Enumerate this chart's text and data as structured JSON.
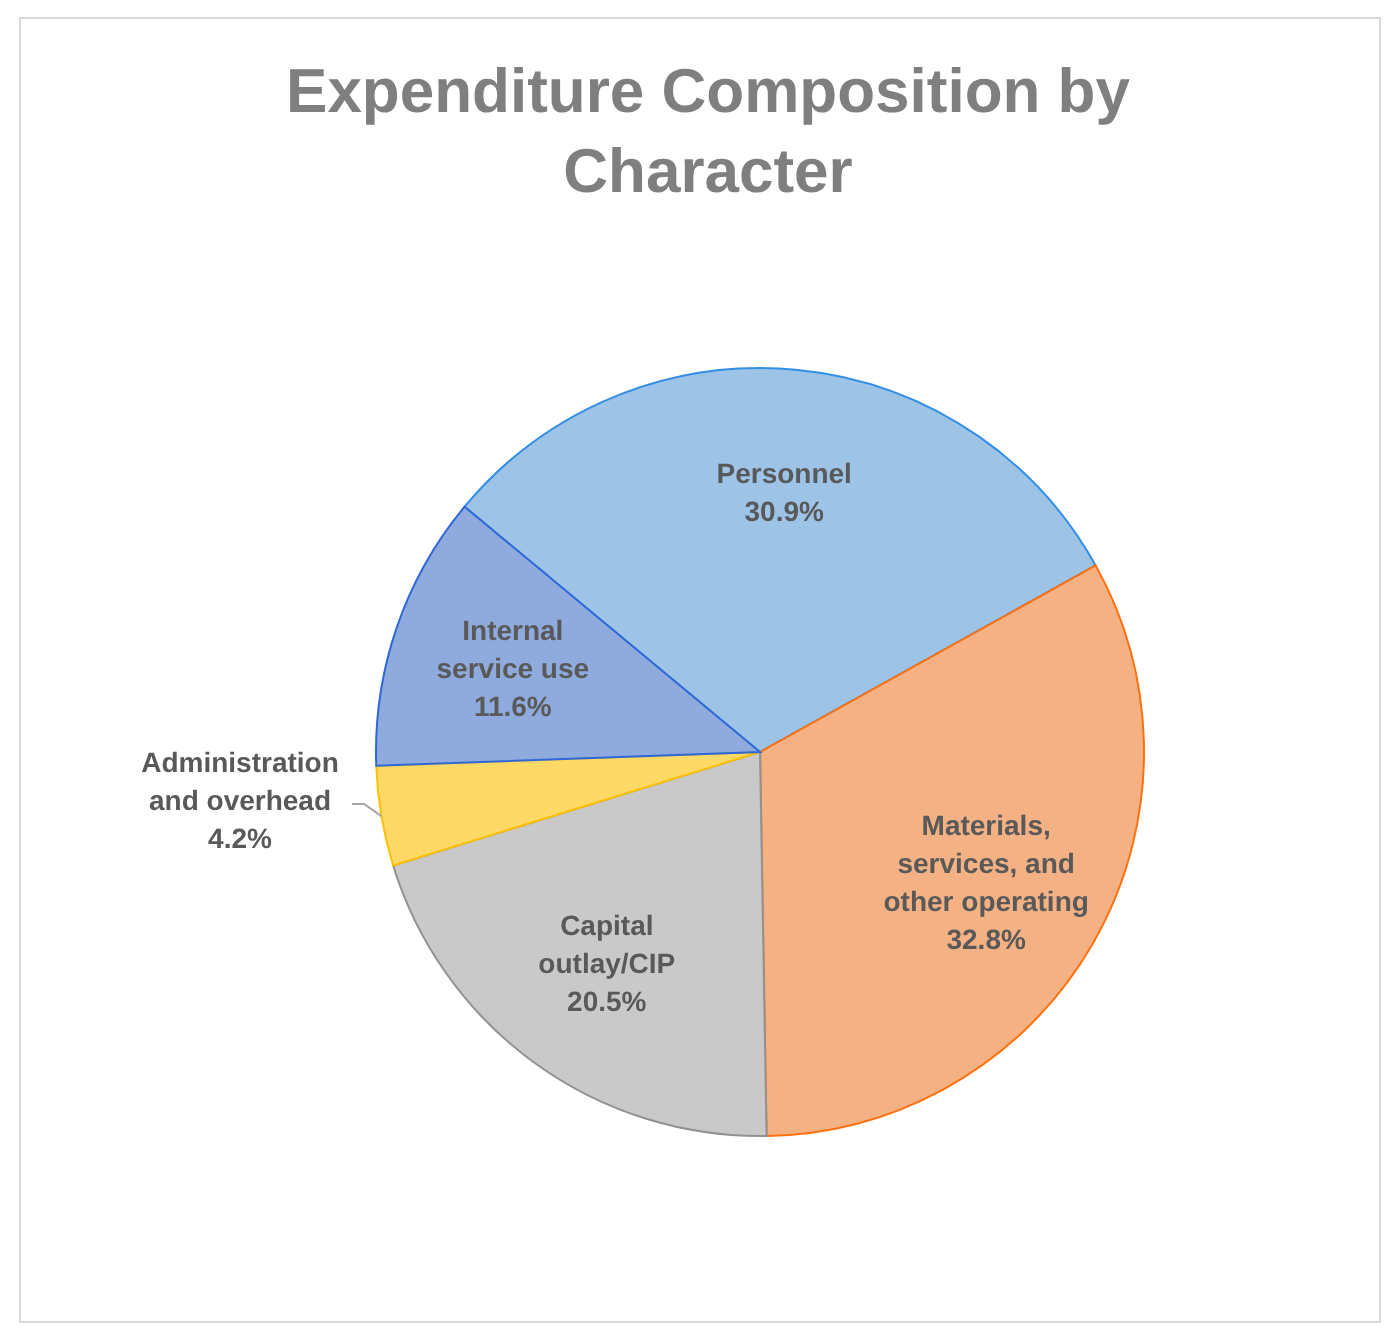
{
  "chart_data": {
    "type": "pie",
    "title": "Expenditure Composition by Character",
    "categories": [
      "Personnel",
      "Materials, services, and other operating",
      "Capital outlay/CIP",
      "Administration and overhead",
      "Internal service use"
    ],
    "values": [
      30.9,
      32.8,
      20.5,
      4.2,
      11.6
    ],
    "value_labels": [
      "30.9%",
      "32.8%",
      "20.5%",
      "4.2%",
      "11.6%"
    ],
    "colors": [
      "#9dc3e6",
      "#f4b183",
      "#c9c9c9",
      "#ffd966",
      "#8faadc"
    ]
  }
}
